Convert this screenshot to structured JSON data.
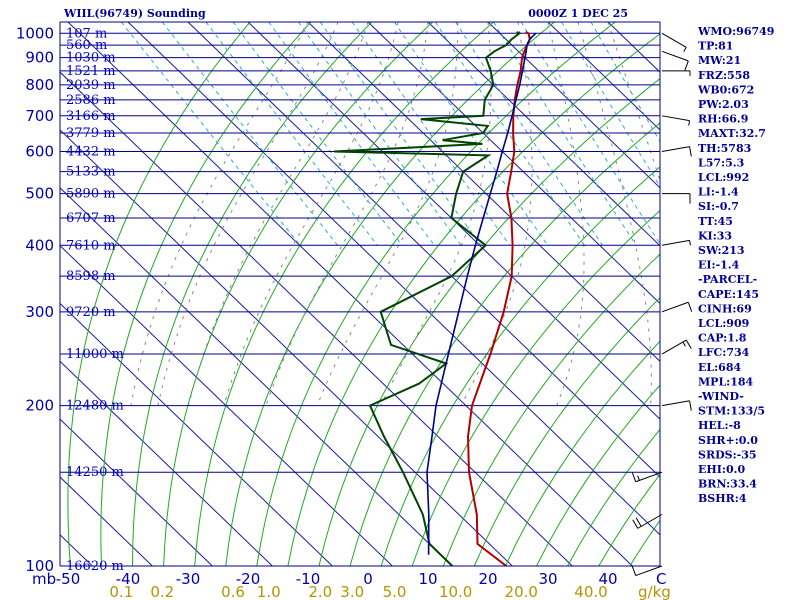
{
  "header": {
    "title": "WIIL(96749) Sounding",
    "time": "0000Z  1 DEC 25"
  },
  "chart_data": {
    "type": "line",
    "title": "WIIL(96749) Sounding",
    "subtitle": "0000Z  1 DEC 25",
    "x_unit": "C",
    "y_unit": "mb",
    "mixing_ratio_unit": "g/kg",
    "pressure_ticks": [
      100,
      200,
      300,
      400,
      500,
      600,
      700,
      800,
      900,
      1000
    ],
    "temperature_ticks": [
      -50,
      -40,
      -30,
      -20,
      -10,
      0,
      10,
      20,
      30,
      40
    ],
    "mixing_ratio_ticks": [
      "0.1",
      "0.2",
      "0.6",
      "1.0",
      "2.0",
      "3.0",
      "5.0",
      "10.0",
      "20.0",
      "40.0"
    ],
    "height_labels": [
      {
        "p": 100,
        "label": "16620 m"
      },
      {
        "p": 150,
        "label": "14250 m"
      },
      {
        "p": 200,
        "label": "12480 m"
      },
      {
        "p": 250,
        "label": "11000 m"
      },
      {
        "p": 300,
        "label": "9720 m"
      },
      {
        "p": 350,
        "label": "8598 m"
      },
      {
        "p": 400,
        "label": "7610 m"
      },
      {
        "p": 450,
        "label": "6707 m"
      },
      {
        "p": 500,
        "label": "5890 m"
      },
      {
        "p": 550,
        "label": "5133 m"
      },
      {
        "p": 600,
        "label": "4432 m"
      },
      {
        "p": 650,
        "label": "3779 m"
      },
      {
        "p": 700,
        "label": "3166 m"
      },
      {
        "p": 750,
        "label": "2586 m"
      },
      {
        "p": 800,
        "label": "2039 m"
      },
      {
        "p": 850,
        "label": "1521 m"
      },
      {
        "p": 900,
        "label": "1030 m"
      },
      {
        "p": 950,
        "label": "560 m"
      },
      {
        "p": 1000,
        "label": "107 m"
      }
    ],
    "series": [
      {
        "color": "#b30000",
        "points": [
          [
            1005,
            24.5
          ],
          [
            1000,
            24.8
          ],
          [
            975,
            24.0
          ],
          [
            950,
            22.5
          ],
          [
            925,
            21.0
          ],
          [
            900,
            19.5
          ],
          [
            850,
            17.0
          ],
          [
            800,
            14.0
          ],
          [
            750,
            11.0
          ],
          [
            700,
            8.0
          ],
          [
            650,
            5.0
          ],
          [
            600,
            2.0
          ],
          [
            550,
            -2.0
          ],
          [
            500,
            -6.5
          ],
          [
            450,
            -10.0
          ],
          [
            400,
            -14.5
          ],
          [
            350,
            -20.0
          ],
          [
            300,
            -27.5
          ],
          [
            250,
            -37.0
          ],
          [
            200,
            -49.0
          ],
          [
            175,
            -55.0
          ],
          [
            150,
            -61.0
          ],
          [
            125,
            -67.0
          ],
          [
            110,
            -72.0
          ],
          [
            100,
            -71.0
          ]
        ]
      },
      {
        "color": "#004400",
        "points": [
          [
            1005,
            23.0
          ],
          [
            1000,
            23.3
          ],
          [
            975,
            21.0
          ],
          [
            950,
            19.0
          ],
          [
            925,
            16.0
          ],
          [
            900,
            13.5
          ],
          [
            850,
            12.0
          ],
          [
            800,
            10.0
          ],
          [
            750,
            6.0
          ],
          [
            700,
            3.0
          ],
          [
            690,
            -8.0
          ],
          [
            670,
            2.0
          ],
          [
            650,
            0.0
          ],
          [
            630,
            -8.0
          ],
          [
            620,
            -2.0
          ],
          [
            600,
            -28.0
          ],
          [
            590,
            -3.0
          ],
          [
            550,
            -10.0
          ],
          [
            500,
            -15.0
          ],
          [
            450,
            -20.0
          ],
          [
            400,
            -19.0
          ],
          [
            350,
            -30.0
          ],
          [
            300,
            -48.0
          ],
          [
            260,
            -52.0
          ],
          [
            240,
            -46.0
          ],
          [
            220,
            -54.0
          ],
          [
            200,
            -66.0
          ],
          [
            175,
            -69.0
          ],
          [
            150,
            -72.0
          ],
          [
            125,
            -76.0
          ],
          [
            110,
            -80.0
          ],
          [
            100,
            -80.0
          ]
        ]
      },
      {
        "color": "#00008b",
        "points": [
          [
            1000,
            26.0
          ],
          [
            975,
            24.0
          ],
          [
            950,
            22.5
          ],
          [
            925,
            21.3
          ],
          [
            900,
            20.0
          ],
          [
            850,
            17.3
          ],
          [
            800,
            14.4
          ],
          [
            750,
            11.2
          ],
          [
            700,
            7.8
          ],
          [
            650,
            4.1
          ],
          [
            600,
            0.0
          ],
          [
            550,
            -4.4
          ],
          [
            500,
            -9.3
          ],
          [
            450,
            -14.7
          ],
          [
            400,
            -20.7
          ],
          [
            350,
            -27.4
          ],
          [
            300,
            -35.0
          ],
          [
            250,
            -44.0
          ],
          [
            200,
            -55.0
          ],
          [
            175,
            -61.0
          ],
          [
            150,
            -68.0
          ],
          [
            125,
            -75.0
          ],
          [
            105,
            -82.0
          ]
        ]
      }
    ],
    "wind_barbs": [
      {
        "p": 1000,
        "dir": 120,
        "kt": 5
      },
      {
        "p": 925,
        "dir": 110,
        "kt": 10
      },
      {
        "p": 850,
        "dir": 90,
        "kt": 5
      },
      {
        "p": 700,
        "dir": 100,
        "kt": 5
      },
      {
        "p": 600,
        "dir": 80,
        "kt": 10
      },
      {
        "p": 500,
        "dir": 90,
        "kt": 10
      },
      {
        "p": 400,
        "dir": 80,
        "kt": 5
      },
      {
        "p": 300,
        "dir": 70,
        "kt": 10
      },
      {
        "p": 250,
        "dir": 60,
        "kt": 15
      },
      {
        "p": 200,
        "dir": 80,
        "kt": 10
      },
      {
        "p": 150,
        "dir": 250,
        "kt": 15
      },
      {
        "p": 125,
        "dir": 240,
        "kt": 20
      },
      {
        "p": 100,
        "dir": 250,
        "kt": 10
      }
    ]
  },
  "indices": [
    "WMO:96749",
    "TP:81",
    "MW:21",
    "FRZ:558",
    "WB0:672",
    "PW:2.03",
    "RH:66.9",
    "MAXT:32.7",
    "TH:5783",
    "L57:5.3",
    "LCL:992",
    "LI:-1.4",
    "SI:-0.7",
    "TT:45",
    "KI:33",
    "SW:213",
    "EI:-1.4",
    "-PARCEL-",
    "CAPE:145",
    "CINH:69",
    "LCL:909",
    "CAP:1.8",
    "LFC:734",
    "EL:684",
    "MPL:184",
    "-WIND-",
    "STM:133/5",
    "HEL:-8",
    "SHR+:0.0",
    "SRDS:-35",
    "EHI:0.0",
    "BRN:33.4",
    "BSHR:4"
  ]
}
